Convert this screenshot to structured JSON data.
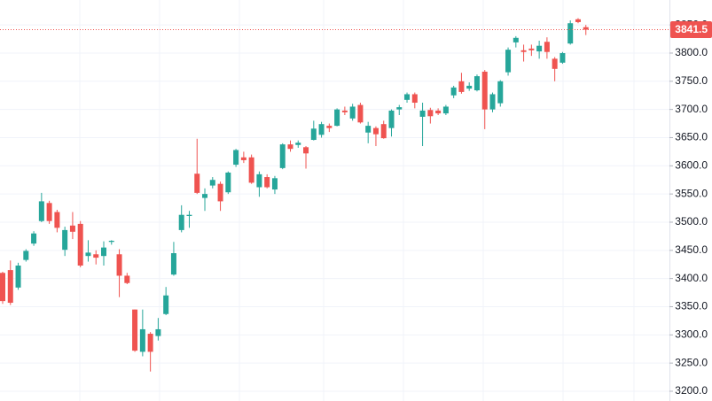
{
  "chart_data": {
    "type": "candlestick",
    "open": [
      3410,
      3415,
      3384,
      3433,
      3462,
      3502,
      3534,
      3518,
      3451,
      3494,
      3497,
      3440,
      3443,
      3440,
      3465,
      3443,
      3405,
      3345,
      3270,
      3302,
      3298,
      3337,
      3407,
      3486,
      3511,
      3586,
      3543,
      3565,
      3568,
      3553,
      3602,
      3615,
      3615,
      3562,
      3580,
      3558,
      3596,
      3638,
      3637,
      3633,
      3646,
      3655,
      3671,
      3671,
      3698,
      3684,
      3708,
      3659,
      3667,
      3674,
      3667,
      3700,
      3717,
      3727,
      3687,
      3699,
      3698,
      3693,
      3725,
      3750,
      3737,
      3734,
      3767,
      3700,
      3711,
      3766,
      3819,
      3805,
      3808,
      3803,
      3820,
      3790,
      3783,
      3817,
      3860,
      3846
    ],
    "high": [
      3412,
      3432,
      3428,
      3452,
      3484,
      3552,
      3538,
      3522,
      3492,
      3518,
      3502,
      3468,
      3450,
      3466,
      3468,
      3452,
      3410,
      3345,
      3345,
      3305,
      3330,
      3385,
      3465,
      3530,
      3520,
      3648,
      3560,
      3580,
      3572,
      3590,
      3630,
      3625,
      3620,
      3590,
      3585,
      3582,
      3640,
      3645,
      3645,
      3635,
      3680,
      3678,
      3675,
      3702,
      3705,
      3710,
      3712,
      3678,
      3670,
      3680,
      3700,
      3708,
      3730,
      3730,
      3712,
      3703,
      3702,
      3708,
      3742,
      3765,
      3748,
      3762,
      3770,
      3730,
      3752,
      3810,
      3830,
      3815,
      3815,
      3822,
      3828,
      3793,
      3802,
      3858,
      3862,
      3850
    ],
    "low": [
      3355,
      3353,
      3380,
      3430,
      3458,
      3500,
      3497,
      3482,
      3440,
      3470,
      3420,
      3430,
      3425,
      3423,
      3460,
      3367,
      3390,
      3270,
      3262,
      3235,
      3290,
      3335,
      3405,
      3482,
      3490,
      3550,
      3520,
      3560,
      3520,
      3550,
      3598,
      3605,
      3568,
      3545,
      3560,
      3550,
      3594,
      3625,
      3632,
      3595,
      3645,
      3650,
      3660,
      3670,
      3690,
      3680,
      3675,
      3640,
      3635,
      3648,
      3652,
      3690,
      3712,
      3702,
      3635,
      3675,
      3690,
      3690,
      3720,
      3728,
      3733,
      3732,
      3665,
      3695,
      3705,
      3760,
      3810,
      3785,
      3795,
      3790,
      3790,
      3750,
      3781,
      3815,
      3853,
      3832
    ],
    "close": [
      3360,
      3357,
      3423,
      3449,
      3480,
      3537,
      3502,
      3490,
      3486,
      3483,
      3423,
      3446,
      3437,
      3455,
      3467,
      3405,
      3392,
      3272,
      3310,
      3270,
      3310,
      3370,
      3445,
      3513,
      3513,
      3552,
      3550,
      3575,
      3537,
      3588,
      3628,
      3610,
      3570,
      3585,
      3562,
      3578,
      3638,
      3630,
      3641,
      3622,
      3666,
      3674,
      3667,
      3700,
      3695,
      3705,
      3677,
      3671,
      3656,
      3649,
      3698,
      3704,
      3727,
      3712,
      3698,
      3688,
      3693,
      3705,
      3739,
      3731,
      3742,
      3759,
      3700,
      3727,
      3750,
      3806,
      3827,
      3802,
      3805,
      3813,
      3802,
      3772,
      3800,
      3853,
      3855,
      3841.5
    ],
    "up_color": "#26a69a",
    "down_color": "#ef5350",
    "ylim": [
      3182.7,
      3894.2
    ],
    "yticks": [
      {
        "value": 3200,
        "label": "3200.0"
      },
      {
        "value": 3250,
        "label": "3250.0"
      },
      {
        "value": 3300,
        "label": "3300.0"
      },
      {
        "value": 3350,
        "label": "3350.0"
      },
      {
        "value": 3400,
        "label": "3400.0"
      },
      {
        "value": 3450,
        "label": "3450.0"
      },
      {
        "value": 3500,
        "label": "3500.0"
      },
      {
        "value": 3550,
        "label": "3550.0"
      },
      {
        "value": 3600,
        "label": "3600.0"
      },
      {
        "value": 3650,
        "label": "3650.0"
      },
      {
        "value": 3700,
        "label": "3700.0"
      },
      {
        "value": 3750,
        "label": "3750.0"
      },
      {
        "value": 3800,
        "label": "3800.0"
      },
      {
        "value": 3850,
        "label": "3850.0"
      }
    ],
    "grid": true
  }
}
